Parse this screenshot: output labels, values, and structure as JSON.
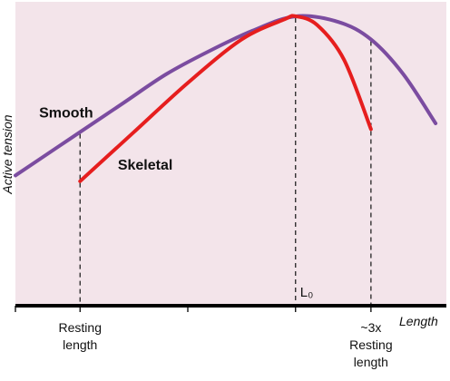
{
  "chart_data": {
    "type": "line",
    "title": "",
    "ylabel": "Active tension",
    "xlabel": "Length",
    "x_units": "relative to resting length",
    "grid": false,
    "colors": {
      "background": "#f3e4ea",
      "smooth": "#7b4ca0",
      "skeletal": "#e61e1e",
      "guides": "#222222"
    },
    "xlim": [
      -0.6,
      3.4
    ],
    "ylim": [
      0.0,
      1.05
    ],
    "series": [
      {
        "name": "Smooth",
        "color": "#7b4ca0",
        "points": [
          {
            "x": -0.6,
            "y": 0.45
          },
          {
            "x": -0.2,
            "y": 0.55
          },
          {
            "x": 0.0,
            "y": 0.6
          },
          {
            "x": 0.4,
            "y": 0.7
          },
          {
            "x": 0.8,
            "y": 0.8
          },
          {
            "x": 1.2,
            "y": 0.88
          },
          {
            "x": 1.6,
            "y": 0.95
          },
          {
            "x": 2.0,
            "y": 1.0
          },
          {
            "x": 2.4,
            "y": 0.98
          },
          {
            "x": 2.7,
            "y": 0.92
          },
          {
            "x": 3.0,
            "y": 0.8
          },
          {
            "x": 3.3,
            "y": 0.63
          }
        ]
      },
      {
        "name": "Skeletal",
        "color": "#e61e1e",
        "points": [
          {
            "x": 0.0,
            "y": 0.43
          },
          {
            "x": 0.5,
            "y": 0.6
          },
          {
            "x": 1.0,
            "y": 0.77
          },
          {
            "x": 1.5,
            "y": 0.92
          },
          {
            "x": 1.9,
            "y": 0.99
          },
          {
            "x": 2.0,
            "y": 1.0
          },
          {
            "x": 2.2,
            "y": 0.97
          },
          {
            "x": 2.45,
            "y": 0.85
          },
          {
            "x": 2.7,
            "y": 0.61
          }
        ]
      }
    ],
    "markers": [
      {
        "x": 0.0,
        "label": "Resting length",
        "lines": [
          "Resting",
          "length"
        ]
      },
      {
        "x": 2.0,
        "label": "L₀",
        "lines": [
          "L₀"
        ]
      },
      {
        "x": 2.7,
        "label": "~3x Resting length",
        "lines": [
          "~3x",
          "Resting",
          "length"
        ]
      }
    ],
    "series_labels": [
      {
        "name": "Smooth",
        "text": "Smooth",
        "x": -0.38,
        "y": 0.65
      },
      {
        "name": "Skeletal",
        "text": "Skeletal",
        "x": 0.35,
        "y": 0.47
      }
    ]
  }
}
